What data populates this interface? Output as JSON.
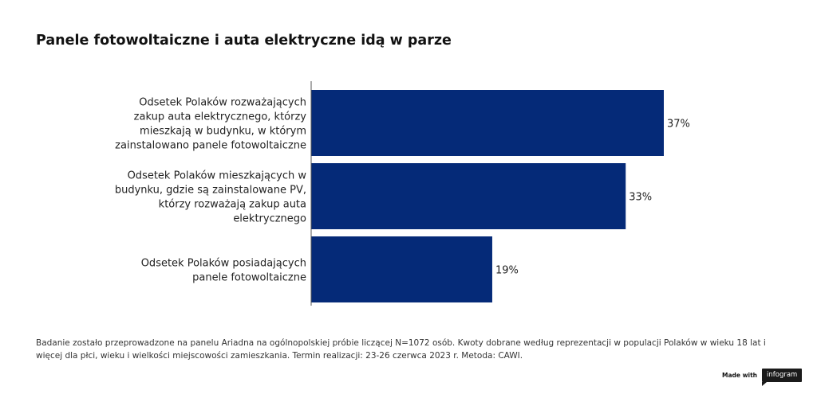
{
  "chart_data": {
    "type": "bar",
    "orientation": "horizontal",
    "title": "Panele fotowoltaiczne i auta elektryczne idą w parze",
    "categories": [
      [
        "Odsetek Polaków rozważających",
        "zakup auta elektrycznego, którzy",
        "mieszkają w budynku, w którym",
        "zainstalowano panele fotowoltaiczne"
      ],
      [
        "Odsetek Polaków mieszkających w",
        "budynku, gdzie są zainstalowane PV,",
        "którzy rozważają zakup auta",
        "elektrycznego"
      ],
      [
        "Odsetek Polaków posiadających",
        "panele fotowoltaiczne"
      ]
    ],
    "values": [
      37,
      33,
      19
    ],
    "value_labels": [
      "37%",
      "33%",
      "19%"
    ],
    "xlim": [
      0,
      37
    ],
    "bar_color": "#052a78",
    "grid": false,
    "legend": "none"
  },
  "footnote": "Badanie zostało przeprowadzone na panelu Ariadna na ogólnopolskiej próbie liczącej N=1072 osób. Kwoty dobrane według reprezentacji w populacji Polaków w wieku 18 lat i więcej dla płci, wieku i wielkości miejscowości zamieszkania. Termin realizacji: 23-26 czerwca 2023 r. Metoda: CAWI.",
  "badge": {
    "made_with": "Made with",
    "brand": "infogram"
  }
}
